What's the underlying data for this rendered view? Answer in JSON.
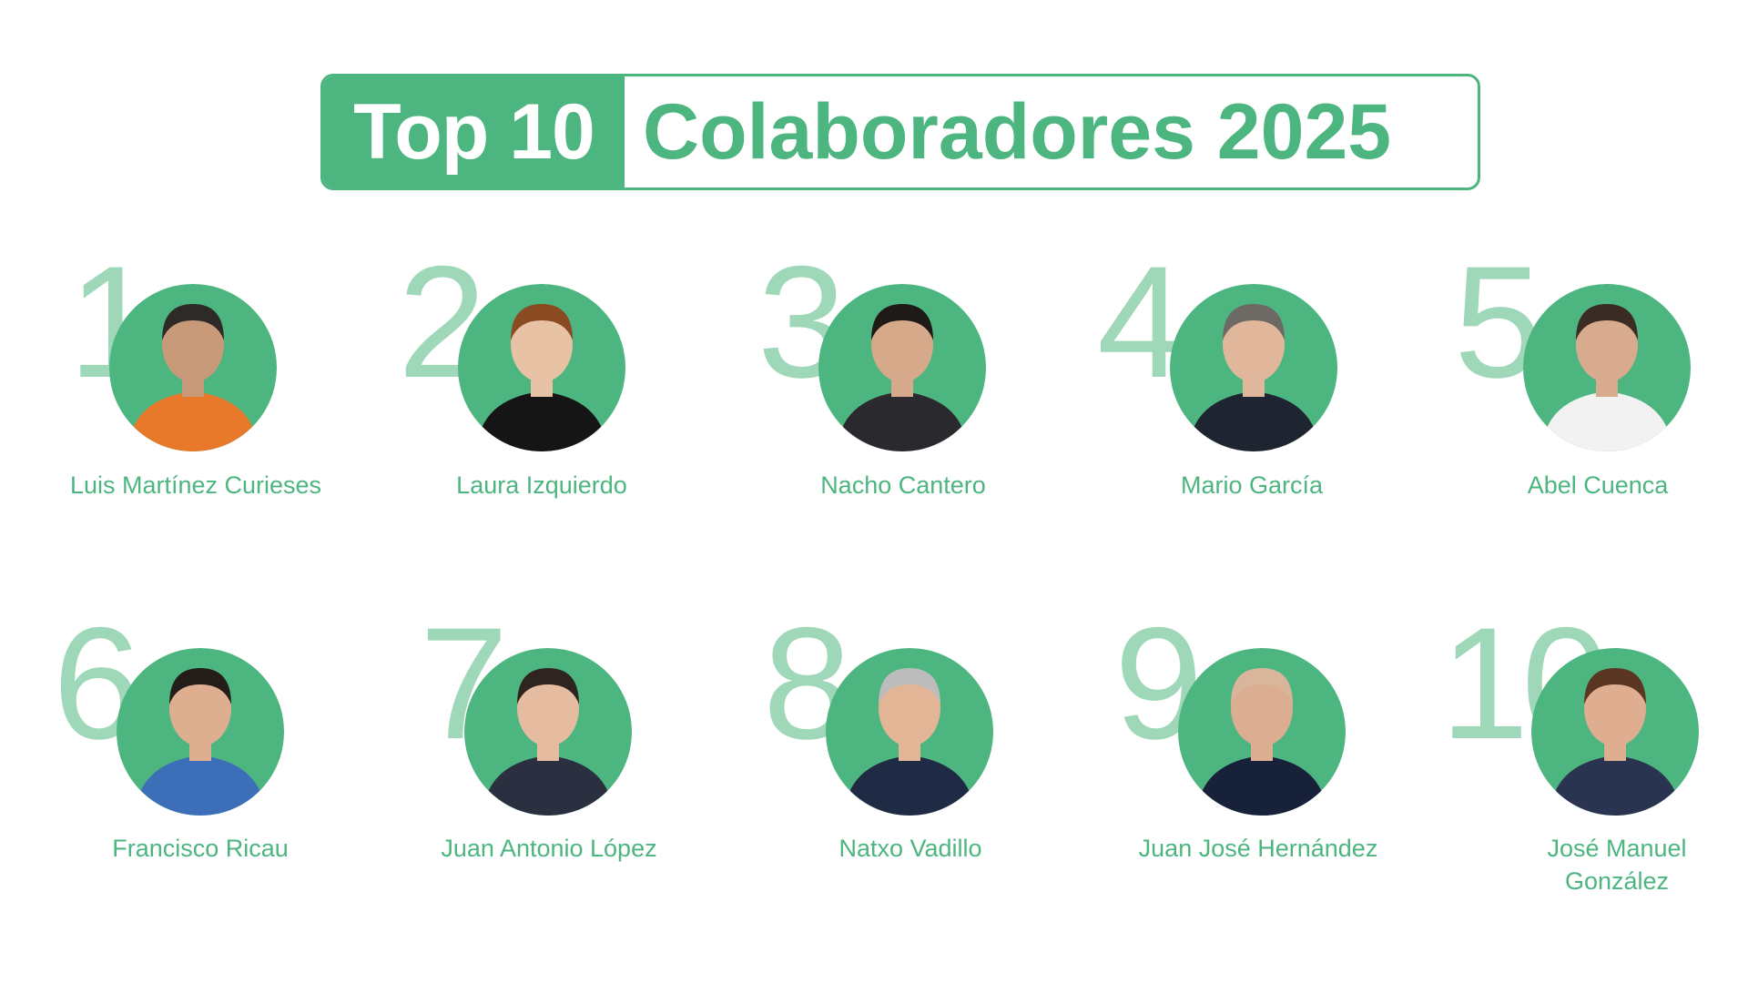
{
  "title": {
    "highlight": "Top 10",
    "rest": "Colaboradores 2025"
  },
  "colors": {
    "accent": "#4db57f",
    "rank_numeral": "#9ed8b8"
  },
  "collaborators": [
    {
      "rank": "1",
      "name": "Luis Martínez Curieses",
      "skin": "#c99a7a",
      "hair": "#2d2a28",
      "clothes": "#e8792b"
    },
    {
      "rank": "2",
      "name": "Laura Izquierdo",
      "skin": "#e7c2a4",
      "hair": "#8a4a22",
      "clothes": "#151515"
    },
    {
      "rank": "3",
      "name": "Nacho Cantero",
      "skin": "#d6a98b",
      "hair": "#1e1a18",
      "clothes": "#2a2a2e"
    },
    {
      "rank": "4",
      "name": "Mario García",
      "skin": "#e1b79c",
      "hair": "#6d6a66",
      "clothes": "#1e2430"
    },
    {
      "rank": "5",
      "name": "Abel Cuenca",
      "skin": "#d9ab8e",
      "hair": "#3a2c24",
      "clothes": "#f2f2f2"
    },
    {
      "rank": "6",
      "name": "Francisco Ricau",
      "skin": "#deae90",
      "hair": "#241c18",
      "clothes": "#3c6fb8"
    },
    {
      "rank": "7",
      "name": "Juan Antonio López",
      "skin": "#e5bca0",
      "hair": "#2e2420",
      "clothes": "#2b3040"
    },
    {
      "rank": "8",
      "name": "Natxo Vadillo",
      "skin": "#e2b597",
      "hair": "#bcbcbc",
      "clothes": "#1f2a45"
    },
    {
      "rank": "9",
      "name": "Juan José Hernández",
      "skin": "#dcae91",
      "hair": "#d9b59b",
      "clothes": "#17213a"
    },
    {
      "rank": "10",
      "name": "José Manuel González",
      "skin": "#dfae90",
      "hair": "#5a3522",
      "clothes": "#2a3350"
    }
  ]
}
